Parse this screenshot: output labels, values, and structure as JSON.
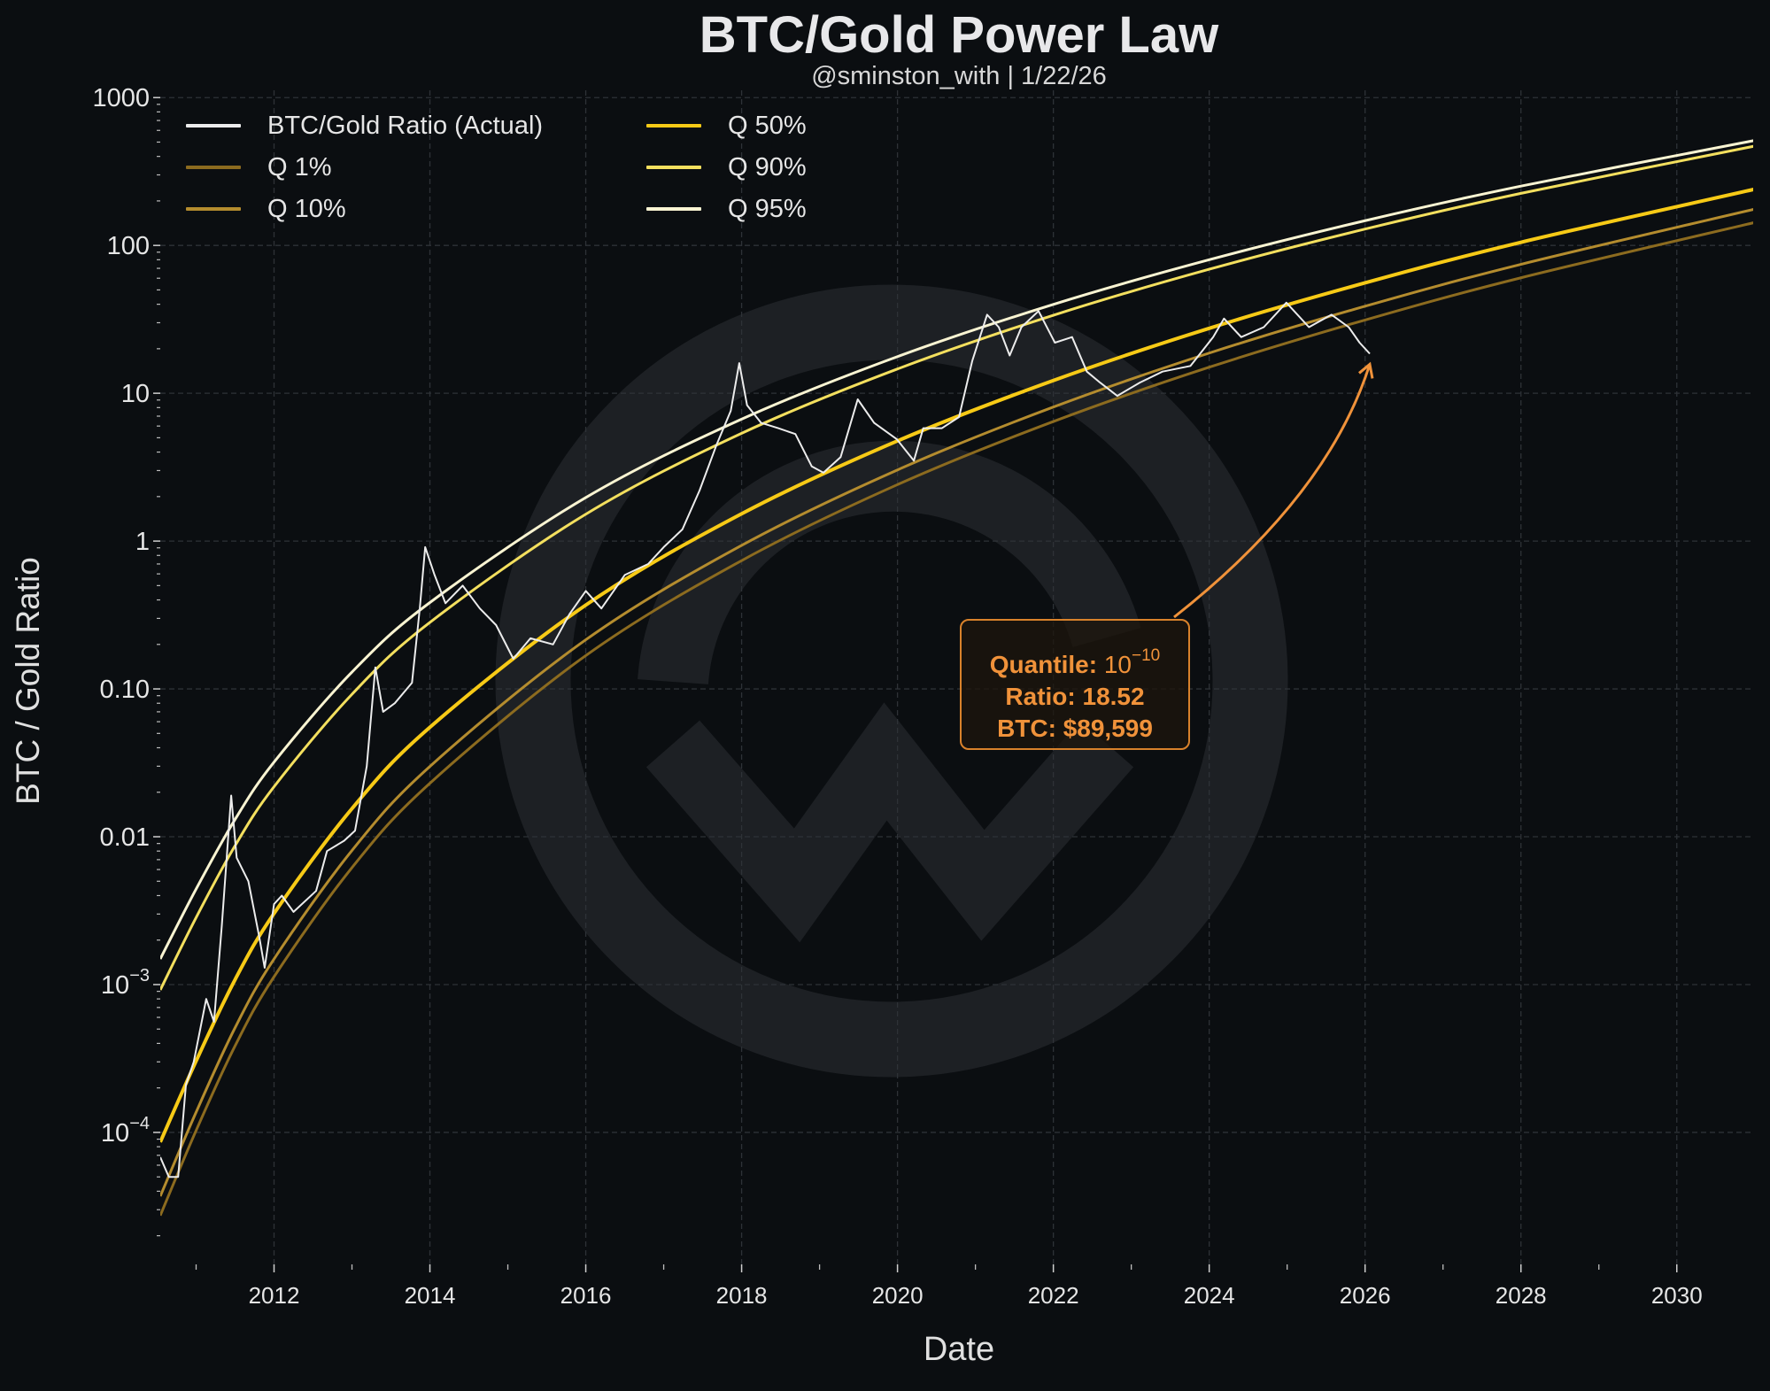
{
  "chart_data": {
    "type": "line",
    "title": "BTC/Gold Power Law",
    "subtitle": "@sminston_with | 1/22/26",
    "xlabel": "Date",
    "ylabel": "BTC / Gold Ratio",
    "xlim": [
      2010.54,
      2030.98
    ],
    "ylim": [
      1.28e-05,
      1120
    ],
    "yscale": "log",
    "grid": true,
    "legend_position": "top-left",
    "background": "#0b0e11",
    "x_ticks": [
      "2012",
      "2014",
      "2016",
      "2018",
      "2020",
      "2022",
      "2024",
      "2026",
      "2028",
      "2030"
    ],
    "y_ticks": [
      {
        "value": 1000,
        "label": "1000"
      },
      {
        "value": 100,
        "label": "100"
      },
      {
        "value": 10,
        "label": "10"
      },
      {
        "value": 1,
        "label": "1"
      },
      {
        "value": 0.1,
        "label": "0.10"
      },
      {
        "value": 0.01,
        "label": "0.01"
      },
      {
        "value": 0.001,
        "base": "10",
        "exp": "−3"
      },
      {
        "value": 0.0001,
        "base": "10",
        "exp": "−4"
      }
    ],
    "series": [
      {
        "name": "BTC/Gold Ratio (Actual)",
        "color": "#ececec",
        "width": 2,
        "points": [
          [
            2010.54,
            6.8e-05
          ],
          [
            2010.65,
            5e-05
          ],
          [
            2010.77,
            5e-05
          ],
          [
            2010.87,
            0.00021
          ],
          [
            2010.97,
            0.0003
          ],
          [
            2011.13,
            0.0008
          ],
          [
            2011.23,
            0.00056
          ],
          [
            2011.33,
            0.0025
          ],
          [
            2011.45,
            0.019
          ],
          [
            2011.52,
            0.0072
          ],
          [
            2011.67,
            0.005
          ],
          [
            2011.81,
            0.0021
          ],
          [
            2011.88,
            0.0013
          ],
          [
            2012.0,
            0.0035
          ],
          [
            2012.1,
            0.004
          ],
          [
            2012.25,
            0.0031
          ],
          [
            2012.54,
            0.0043
          ],
          [
            2012.68,
            0.008
          ],
          [
            2012.9,
            0.0094
          ],
          [
            2013.04,
            0.011
          ],
          [
            2013.19,
            0.03
          ],
          [
            2013.3,
            0.14
          ],
          [
            2013.4,
            0.07
          ],
          [
            2013.55,
            0.08
          ],
          [
            2013.77,
            0.11
          ],
          [
            2013.87,
            0.35
          ],
          [
            2013.94,
            0.91
          ],
          [
            2014.06,
            0.59
          ],
          [
            2014.2,
            0.38
          ],
          [
            2014.42,
            0.5
          ],
          [
            2014.64,
            0.35
          ],
          [
            2014.85,
            0.27
          ],
          [
            2015.07,
            0.16
          ],
          [
            2015.29,
            0.22
          ],
          [
            2015.58,
            0.2
          ],
          [
            2015.79,
            0.32
          ],
          [
            2016.0,
            0.46
          ],
          [
            2016.2,
            0.35
          ],
          [
            2016.5,
            0.59
          ],
          [
            2016.8,
            0.7
          ],
          [
            2017.0,
            0.91
          ],
          [
            2017.24,
            1.2
          ],
          [
            2017.46,
            2.2
          ],
          [
            2017.68,
            4.5
          ],
          [
            2017.86,
            7.6
          ],
          [
            2017.97,
            16
          ],
          [
            2018.07,
            8.3
          ],
          [
            2018.25,
            6.3
          ],
          [
            2018.47,
            5.8
          ],
          [
            2018.69,
            5.3
          ],
          [
            2018.9,
            3.2
          ],
          [
            2019.05,
            2.9
          ],
          [
            2019.27,
            3.7
          ],
          [
            2019.49,
            9.1
          ],
          [
            2019.7,
            6.3
          ],
          [
            2019.99,
            4.9
          ],
          [
            2020.21,
            3.5
          ],
          [
            2020.33,
            5.8
          ],
          [
            2020.57,
            5.8
          ],
          [
            2020.79,
            6.9
          ],
          [
            2020.96,
            16.6
          ],
          [
            2021.15,
            34
          ],
          [
            2021.3,
            28
          ],
          [
            2021.44,
            18
          ],
          [
            2021.59,
            28
          ],
          [
            2021.81,
            36
          ],
          [
            2022.02,
            22
          ],
          [
            2022.24,
            24
          ],
          [
            2022.43,
            14
          ],
          [
            2022.6,
            11.8
          ],
          [
            2022.82,
            9.6
          ],
          [
            2023.11,
            11.8
          ],
          [
            2023.4,
            14
          ],
          [
            2023.76,
            15.3
          ],
          [
            2024.05,
            24
          ],
          [
            2024.19,
            32
          ],
          [
            2024.41,
            24
          ],
          [
            2024.7,
            28
          ],
          [
            2024.99,
            41
          ],
          [
            2025.28,
            28
          ],
          [
            2025.57,
            34
          ],
          [
            2025.79,
            28
          ],
          [
            2025.93,
            22
          ],
          [
            2026.06,
            18.52
          ]
        ]
      },
      {
        "name": "Q 1%",
        "color": "#8c6b1f",
        "width": 3,
        "points": [
          [
            2010.54,
            2.74e-05
          ],
          [
            2011,
            0.000103
          ],
          [
            2011.5,
            0.000385
          ],
          [
            2012,
            0.00113
          ],
          [
            2013,
            0.00618
          ],
          [
            2014,
            0.023
          ],
          [
            2016,
            0.168
          ],
          [
            2018,
            0.738
          ],
          [
            2020,
            2.41
          ],
          [
            2022,
            6.44
          ],
          [
            2024,
            15.0
          ],
          [
            2026,
            31.3
          ],
          [
            2028,
            60.4
          ],
          [
            2031,
            143
          ]
        ]
      },
      {
        "name": "Q 10%",
        "color": "#b48c2e",
        "width": 3,
        "points": [
          [
            2010.54,
            3.7e-05
          ],
          [
            2011,
            0.000137
          ],
          [
            2011.5,
            0.000511
          ],
          [
            2012,
            0.00149
          ],
          [
            2013,
            0.00807
          ],
          [
            2014,
            0.0299
          ],
          [
            2016,
            0.215
          ],
          [
            2018,
            0.935
          ],
          [
            2020,
            3.03
          ],
          [
            2022,
            8.07
          ],
          [
            2024,
            18.7
          ],
          [
            2026,
            38.8
          ],
          [
            2028,
            74.5
          ],
          [
            2031,
            176
          ]
        ]
      },
      {
        "name": "Q 50%",
        "color": "#f7ca16",
        "width": 4,
        "points": [
          [
            2010.54,
            8.6e-05
          ],
          [
            2011,
            0.000304
          ],
          [
            2011.5,
            0.00108
          ],
          [
            2012,
            0.00303
          ],
          [
            2013,
            0.0155
          ],
          [
            2014,
            0.055
          ],
          [
            2016,
            0.369
          ],
          [
            2018,
            1.53
          ],
          [
            2020,
            4.76
          ],
          [
            2022,
            12.2
          ],
          [
            2024,
            27.5
          ],
          [
            2026,
            55.8
          ],
          [
            2028,
            105
          ],
          [
            2031,
            240
          ]
        ]
      },
      {
        "name": "Q 90%",
        "color": "#f3df5e",
        "width": 3,
        "points": [
          [
            2010.54,
            0.00092
          ],
          [
            2011,
            0.00284
          ],
          [
            2011.5,
            0.0087
          ],
          [
            2012,
            0.0218
          ],
          [
            2013,
            0.092
          ],
          [
            2014,
            0.282
          ],
          [
            2016,
            1.52
          ],
          [
            2018,
            5.36
          ],
          [
            2020,
            14.6
          ],
          [
            2022,
            33.7
          ],
          [
            2024,
            69
          ],
          [
            2026,
            129
          ],
          [
            2028,
            225
          ],
          [
            2031,
            470
          ]
        ]
      },
      {
        "name": "Q 95%",
        "color": "#f9f4d2",
        "width": 3,
        "points": [
          [
            2010.54,
            0.00149
          ],
          [
            2011,
            0.00443
          ],
          [
            2011.5,
            0.0131
          ],
          [
            2012,
            0.032
          ],
          [
            2013,
            0.13
          ],
          [
            2014,
            0.384
          ],
          [
            2016,
            1.97
          ],
          [
            2018,
            6.68
          ],
          [
            2020,
            17.7
          ],
          [
            2022,
            39.9
          ],
          [
            2024,
            80
          ],
          [
            2026,
            147
          ],
          [
            2028,
            252
          ],
          [
            2031,
            513
          ]
        ]
      }
    ],
    "legend_order": [
      0,
      3,
      1,
      4,
      2,
      5
    ],
    "annotation": {
      "quantile_label": "Quantile:",
      "quantile_base": "10",
      "quantile_exp": "−10",
      "ratio_text": "Ratio: 18.52",
      "btc_text": "BTC: $89,599",
      "color": "#f0923a",
      "target": [
        2026.06,
        18.52
      ]
    }
  }
}
